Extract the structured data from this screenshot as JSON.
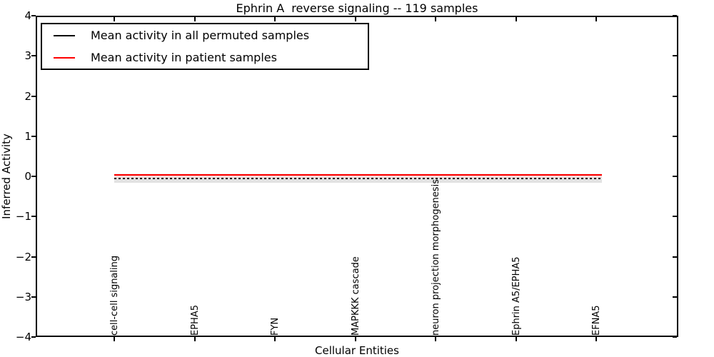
{
  "title": "Ephrin A  reverse signaling -- 119 samples",
  "y_axis": {
    "label": "Inferred Activity",
    "ticks": [
      "4",
      "3",
      "2",
      "1",
      "0",
      "−1",
      "−2",
      "−3",
      "−4"
    ]
  },
  "x_axis": {
    "label": "Cellular Entities",
    "entities": [
      "cell-cell signaling",
      "EPHA5",
      "FYN",
      "MAPKKK cascade",
      "neuron projection morphogenesis",
      "Ephrin A5/EPHA5",
      "EFNA5"
    ]
  },
  "legend": {
    "items": [
      {
        "label": "Mean activity in all permuted samples",
        "color": "#000000"
      },
      {
        "label": "Mean activity in patient samples",
        "color": "#ff0000"
      }
    ]
  },
  "colors": {
    "permuted_line": "#000000",
    "patient_line": "#ff0000",
    "band": "#e2e2e2",
    "band_inner": "#f3dcdc"
  },
  "chart_data": {
    "type": "line",
    "title": "Ephrin A  reverse signaling -- 119 samples",
    "xlabel": "Cellular Entities",
    "ylabel": "Inferred Activity",
    "ylim": [
      -4,
      4
    ],
    "yticks": [
      4,
      3,
      2,
      1,
      0,
      -1,
      -2,
      -3,
      -4
    ],
    "grid": false,
    "legend_position": "upper left",
    "categories": [
      "cell-cell signaling",
      "EPHA5",
      "FYN",
      "MAPKKK cascade",
      "neuron projection morphogenesis",
      "Ephrin A5/EPHA5",
      "EFNA5"
    ],
    "series": [
      {
        "name": "Mean activity in all permuted samples",
        "color": "#000000",
        "style": "dotted",
        "values": [
          -0.01,
          -0.05,
          -0.05,
          -0.05,
          -0.05,
          -0.05,
          -0.05
        ]
      },
      {
        "name": "Mean activity in patient samples",
        "color": "#ff0000",
        "style": "solid",
        "values": [
          -0.01,
          0.04,
          0.04,
          0.04,
          0.04,
          0.04,
          0.04
        ]
      }
    ],
    "band": {
      "description": "shaded std region around permuted mean",
      "range": [
        -0.15,
        0.1
      ],
      "color": "#e2e2e2"
    }
  }
}
